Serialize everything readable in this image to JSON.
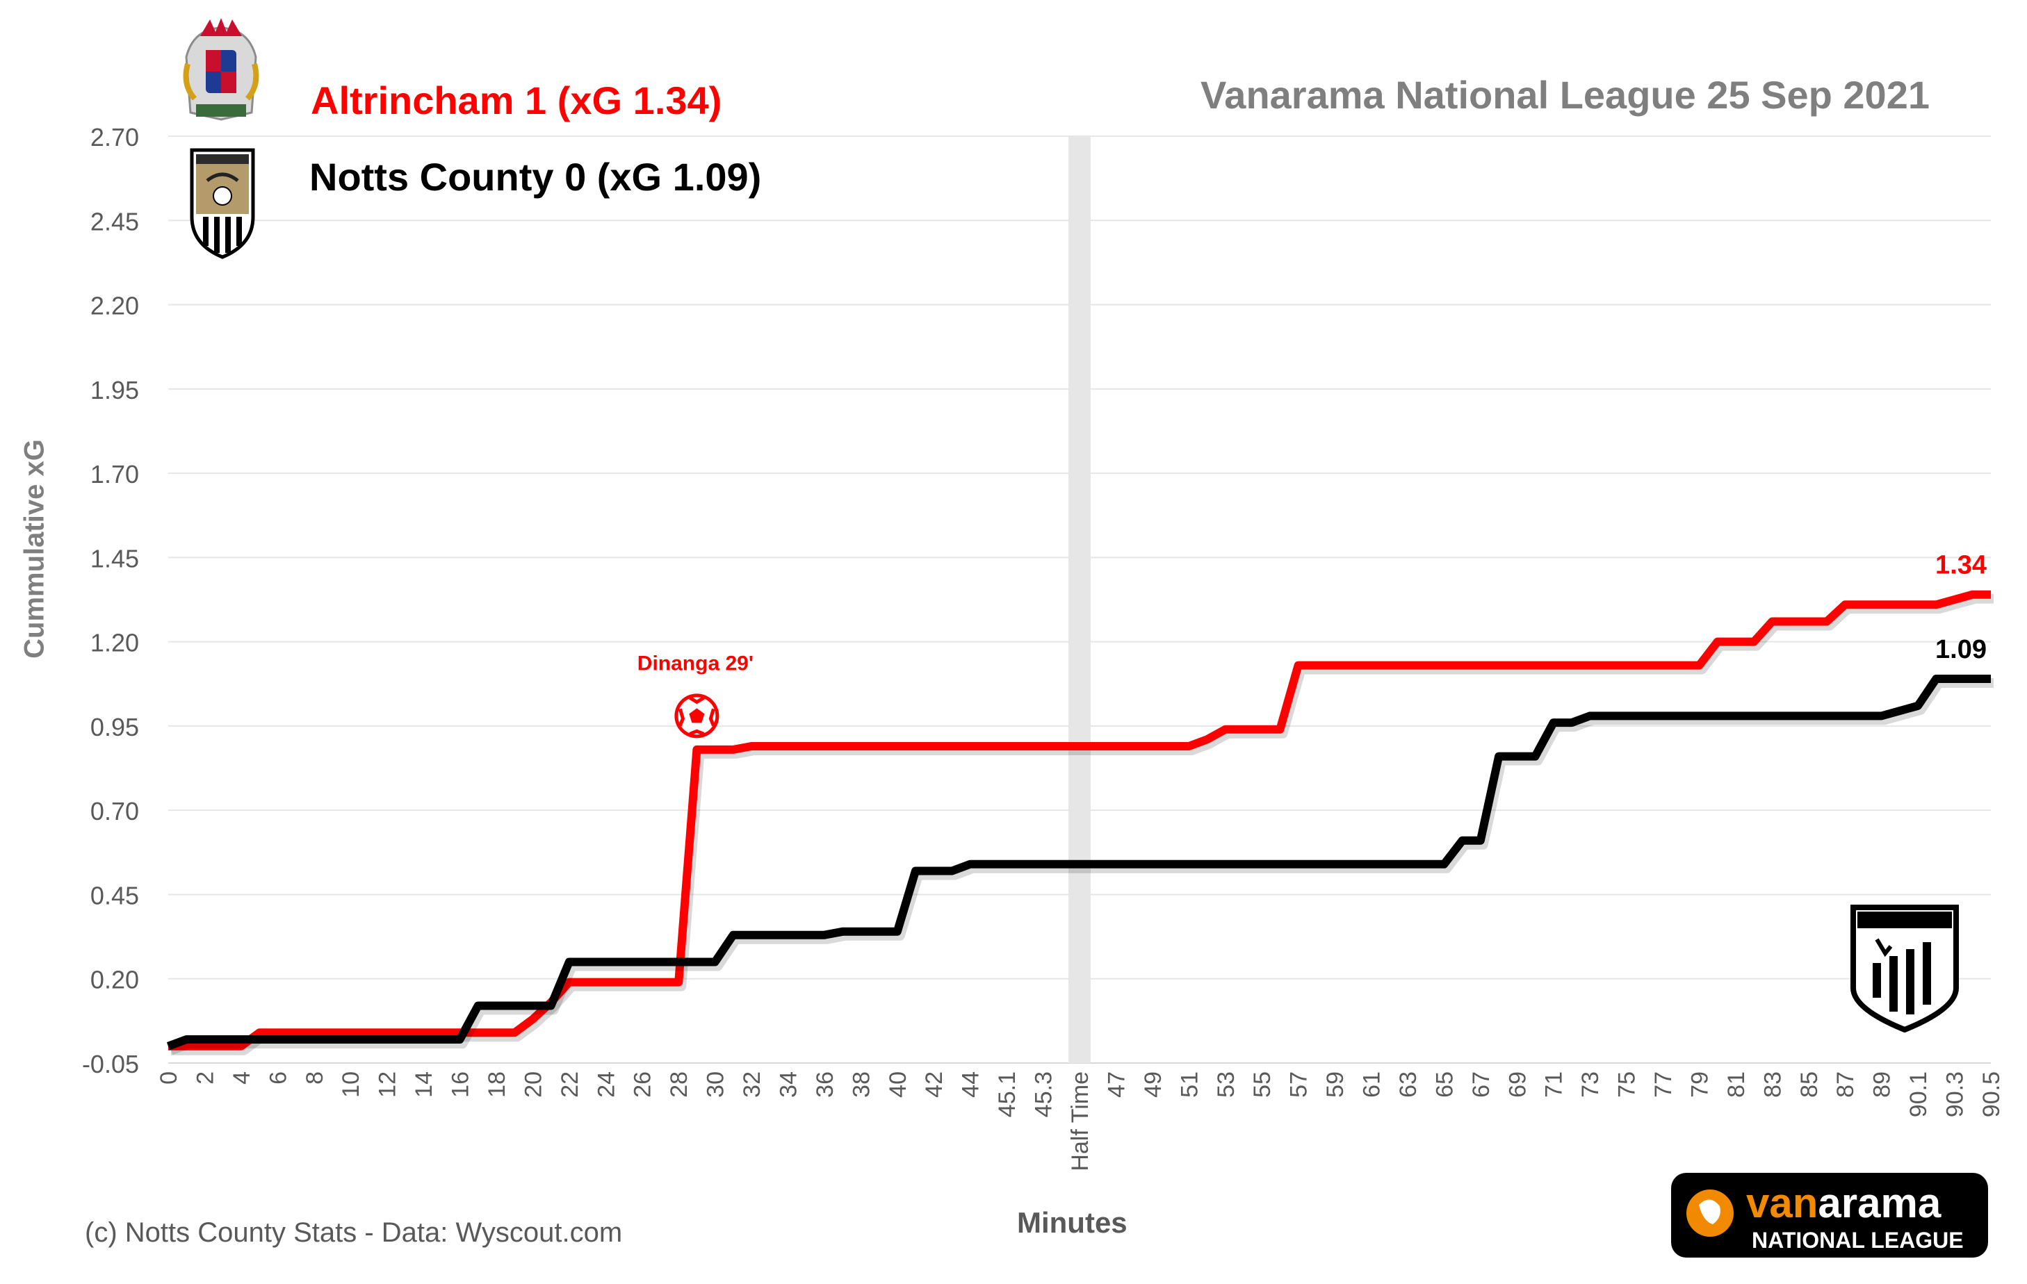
{
  "header": {
    "home_title": "Altrincham 1 (xG 1.34)",
    "away_title": "Notts County  0 (xG 1.09)",
    "competition": "Vanarama National League  25 Sep 2021"
  },
  "footer": {
    "credit": "(c) Notts County Stats - Data: Wyscout.com",
    "sponsor_top": "vanarama",
    "sponsor_bottom": "NATIONAL LEAGUE",
    "watermark": "NOTTS COUNTY STATS"
  },
  "chart_data": {
    "type": "line",
    "xlabel": "Minutes",
    "ylabel": "Cummulative  xG",
    "ylim": [
      -0.05,
      2.7
    ],
    "yticks": [
      "-0.05",
      "0.20",
      "0.45",
      "0.70",
      "0.95",
      "1.20",
      "1.45",
      "1.70",
      "1.95",
      "2.20",
      "2.45",
      "2.70"
    ],
    "grid": true,
    "xticks": [
      "0",
      "2",
      "4",
      "6",
      "8",
      "10",
      "12",
      "14",
      "16",
      "18",
      "20",
      "22",
      "24",
      "26",
      "28",
      "30",
      "32",
      "34",
      "36",
      "38",
      "40",
      "42",
      "44",
      "45.1",
      "45.3",
      "Half Time",
      "47",
      "49",
      "51",
      "53",
      "55",
      "57",
      "59",
      "61",
      "63",
      "65",
      "67",
      "69",
      "71",
      "73",
      "75",
      "77",
      "79",
      "81",
      "83",
      "85",
      "87",
      "89",
      "90.1",
      "90.3",
      "90.5"
    ],
    "half_time_marker": "Half Time",
    "series": [
      {
        "name": "Altrincham",
        "color": "#ff0000",
        "end_label": "1.34",
        "points": [
          [
            0,
            0.0
          ],
          [
            4,
            0.0
          ],
          [
            5,
            0.04
          ],
          [
            18,
            0.04
          ],
          [
            19,
            0.04
          ],
          [
            20,
            0.08
          ],
          [
            21,
            0.13
          ],
          [
            22,
            0.19
          ],
          [
            28,
            0.19
          ],
          [
            29,
            0.88
          ],
          [
            31,
            0.88
          ],
          [
            32,
            0.89
          ],
          [
            45.5,
            0.89
          ],
          [
            51,
            0.89
          ],
          [
            52,
            0.91
          ],
          [
            53,
            0.94
          ],
          [
            56,
            0.94
          ],
          [
            57,
            1.13
          ],
          [
            79,
            1.13
          ],
          [
            80,
            1.2
          ],
          [
            82,
            1.2
          ],
          [
            83,
            1.26
          ],
          [
            86,
            1.26
          ],
          [
            87,
            1.31
          ],
          [
            90.2,
            1.31
          ],
          [
            90.4,
            1.34
          ],
          [
            90.5,
            1.34
          ]
        ]
      },
      {
        "name": "Notts County",
        "color": "#000000",
        "end_label": "1.09",
        "points": [
          [
            0,
            0.0
          ],
          [
            1,
            0.02
          ],
          [
            16,
            0.02
          ],
          [
            17,
            0.12
          ],
          [
            20,
            0.12
          ],
          [
            21,
            0.12
          ],
          [
            22,
            0.25
          ],
          [
            30,
            0.25
          ],
          [
            31,
            0.33
          ],
          [
            36,
            0.33
          ],
          [
            37,
            0.34
          ],
          [
            40,
            0.34
          ],
          [
            41,
            0.52
          ],
          [
            43,
            0.52
          ],
          [
            44,
            0.54
          ],
          [
            45.5,
            0.54
          ],
          [
            65,
            0.54
          ],
          [
            66,
            0.61
          ],
          [
            67,
            0.61
          ],
          [
            68,
            0.86
          ],
          [
            70,
            0.86
          ],
          [
            71,
            0.96
          ],
          [
            72,
            0.96
          ],
          [
            73,
            0.98
          ],
          [
            89,
            0.98
          ],
          [
            90.1,
            1.01
          ],
          [
            90.2,
            1.09
          ],
          [
            90.5,
            1.09
          ]
        ]
      }
    ],
    "annotations": [
      {
        "text": "Dinanga 29'",
        "x": 29,
        "y": 0.98,
        "color": "#ff0000",
        "icon": "football-icon"
      }
    ]
  }
}
